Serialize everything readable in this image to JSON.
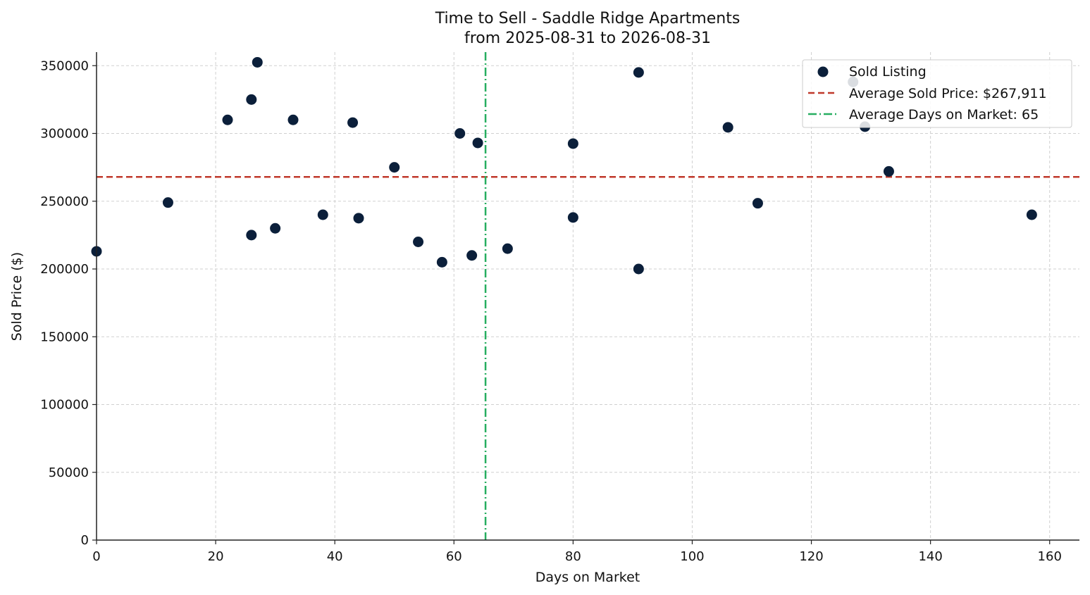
{
  "chart_data": {
    "type": "scatter",
    "title": "Time to Sell - Saddle Ridge Apartments",
    "subtitle": "from 2025-08-31 to 2026-08-31",
    "xlabel": "Days on Market",
    "ylabel": "Sold Price ($)",
    "xlim": [
      0,
      165
    ],
    "ylim": [
      0,
      360000
    ],
    "x_ticks": [
      0,
      20,
      40,
      60,
      80,
      100,
      120,
      140,
      160
    ],
    "y_ticks": [
      0,
      50000,
      100000,
      150000,
      200000,
      250000,
      300000,
      350000
    ],
    "grid": true,
    "legend_position": "top-right",
    "series": [
      {
        "name": "Sold Listing",
        "color": "#0b1f3a",
        "points": [
          {
            "x": 0,
            "y": 213000
          },
          {
            "x": 12,
            "y": 249000
          },
          {
            "x": 22,
            "y": 310000
          },
          {
            "x": 26,
            "y": 325000
          },
          {
            "x": 26,
            "y": 225000
          },
          {
            "x": 27,
            "y": 352500
          },
          {
            "x": 30,
            "y": 230000
          },
          {
            "x": 33,
            "y": 310000
          },
          {
            "x": 38,
            "y": 240000
          },
          {
            "x": 43,
            "y": 308000
          },
          {
            "x": 44,
            "y": 237500
          },
          {
            "x": 50,
            "y": 275000
          },
          {
            "x": 54,
            "y": 220000
          },
          {
            "x": 58,
            "y": 205000
          },
          {
            "x": 61,
            "y": 300000
          },
          {
            "x": 63,
            "y": 210000
          },
          {
            "x": 64,
            "y": 293000
          },
          {
            "x": 69,
            "y": 215000
          },
          {
            "x": 80,
            "y": 292500
          },
          {
            "x": 80,
            "y": 238000
          },
          {
            "x": 91,
            "y": 345000
          },
          {
            "x": 91,
            "y": 200000
          },
          {
            "x": 106,
            "y": 304500
          },
          {
            "x": 111,
            "y": 248500
          },
          {
            "x": 127,
            "y": 338000
          },
          {
            "x": 129,
            "y": 305000
          },
          {
            "x": 133,
            "y": 272000
          },
          {
            "x": 157,
            "y": 240000
          }
        ]
      }
    ],
    "reference_lines": [
      {
        "orientation": "horizontal",
        "value": 267911,
        "label": "Average Sold Price: $267,911",
        "color": "#c0392b",
        "style": "dashed"
      },
      {
        "orientation": "vertical",
        "value": 65.3,
        "label": "Average Days on Market: 65",
        "color": "#27ae60",
        "style": "dashdot"
      }
    ]
  }
}
